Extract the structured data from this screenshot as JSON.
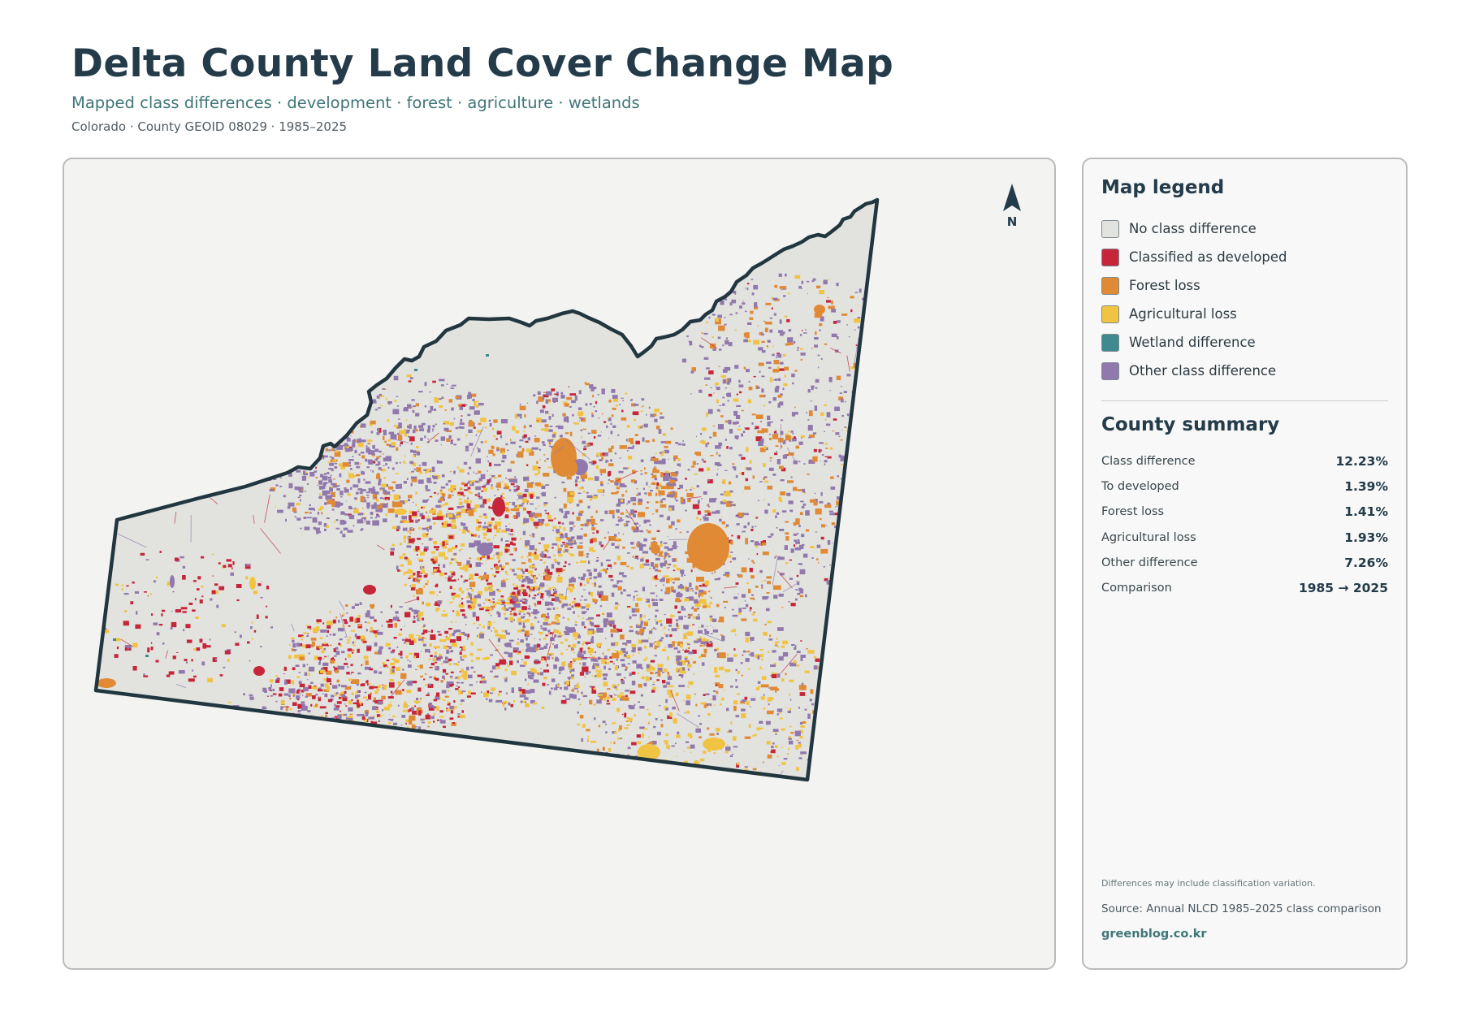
{
  "header": {
    "title": "Delta County Land Cover Change Map",
    "subtitle": "Mapped class differences · development · forest · agriculture · wetlands",
    "meta": "Colorado · County GEOID 08029 · 1985–2025"
  },
  "map": {
    "north_label": "N",
    "classes": [
      {
        "key": "none",
        "color": "#e2e3df"
      },
      {
        "key": "developed",
        "color": "#c7263a"
      },
      {
        "key": "forest",
        "color": "#e08a35"
      },
      {
        "key": "agri",
        "color": "#f0c343"
      },
      {
        "key": "wetland",
        "color": "#3e8a8e"
      },
      {
        "key": "other",
        "color": "#9178ad"
      }
    ]
  },
  "legend": {
    "title": "Map legend",
    "items": [
      {
        "label": "No class difference",
        "color": "#e2e3df"
      },
      {
        "label": "Classified as developed",
        "color": "#c7263a"
      },
      {
        "label": "Forest loss",
        "color": "#e08a35"
      },
      {
        "label": "Agricultural loss",
        "color": "#f0c343"
      },
      {
        "label": "Wetland difference",
        "color": "#3e8a8e"
      },
      {
        "label": "Other class difference",
        "color": "#9178ad"
      }
    ]
  },
  "summary": {
    "title": "County summary",
    "rows": [
      {
        "label": "Class difference",
        "value": "12.23%"
      },
      {
        "label": "To developed",
        "value": "1.39%"
      },
      {
        "label": "Forest loss",
        "value": "1.41%"
      },
      {
        "label": "Agricultural loss",
        "value": "1.93%"
      },
      {
        "label": "Other difference",
        "value": "7.26%"
      },
      {
        "label": "Comparison",
        "value": "1985 → 2025"
      }
    ]
  },
  "footer": {
    "footnote": "Differences may include classification variation.",
    "source": "Source: Annual NLCD 1985–2025 class comparison",
    "site": "greenblog.co.kr"
  }
}
